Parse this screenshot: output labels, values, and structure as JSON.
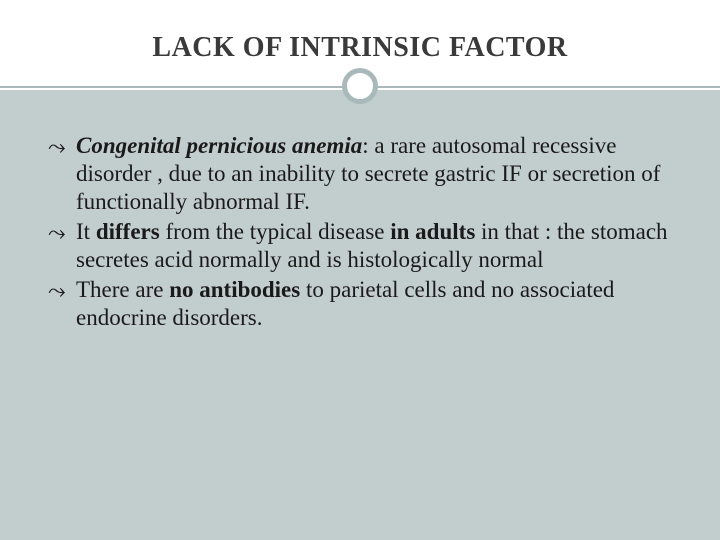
{
  "slide": {
    "title": "LACK OF INTRINSIC FACTOR",
    "background_body": "#c2cdcd",
    "background_header": "#ffffff",
    "divider_color": "#a9b9b9",
    "title_color": "#3a3a3a",
    "text_color": "#1a1a1a",
    "title_fontsize": 28,
    "body_fontsize": 23,
    "bullet_glyph": "⤳",
    "bullets": [
      {
        "runs": [
          {
            "text": "Congenital pernicious anemia",
            "style": "bi"
          },
          {
            "text": ":   a rare autosomal recessive disorder , due to an inability to secrete gastric IF or secretion of functionally abnormal IF.",
            "style": ""
          }
        ]
      },
      {
        "runs": [
          {
            "text": "It ",
            "style": ""
          },
          {
            "text": "differs",
            "style": "bold"
          },
          {
            "text": " from the typical disease ",
            "style": ""
          },
          {
            "text": "in adults",
            "style": "bold"
          },
          {
            "text": " in that : the stomach secretes acid normally and is histologically normal",
            "style": ""
          }
        ]
      },
      {
        "runs": [
          {
            "text": " There are ",
            "style": ""
          },
          {
            "text": "no antibodies",
            "style": "bold"
          },
          {
            "text": " to parietal cells and no associated endocrine disorders.",
            "style": ""
          }
        ]
      }
    ]
  }
}
